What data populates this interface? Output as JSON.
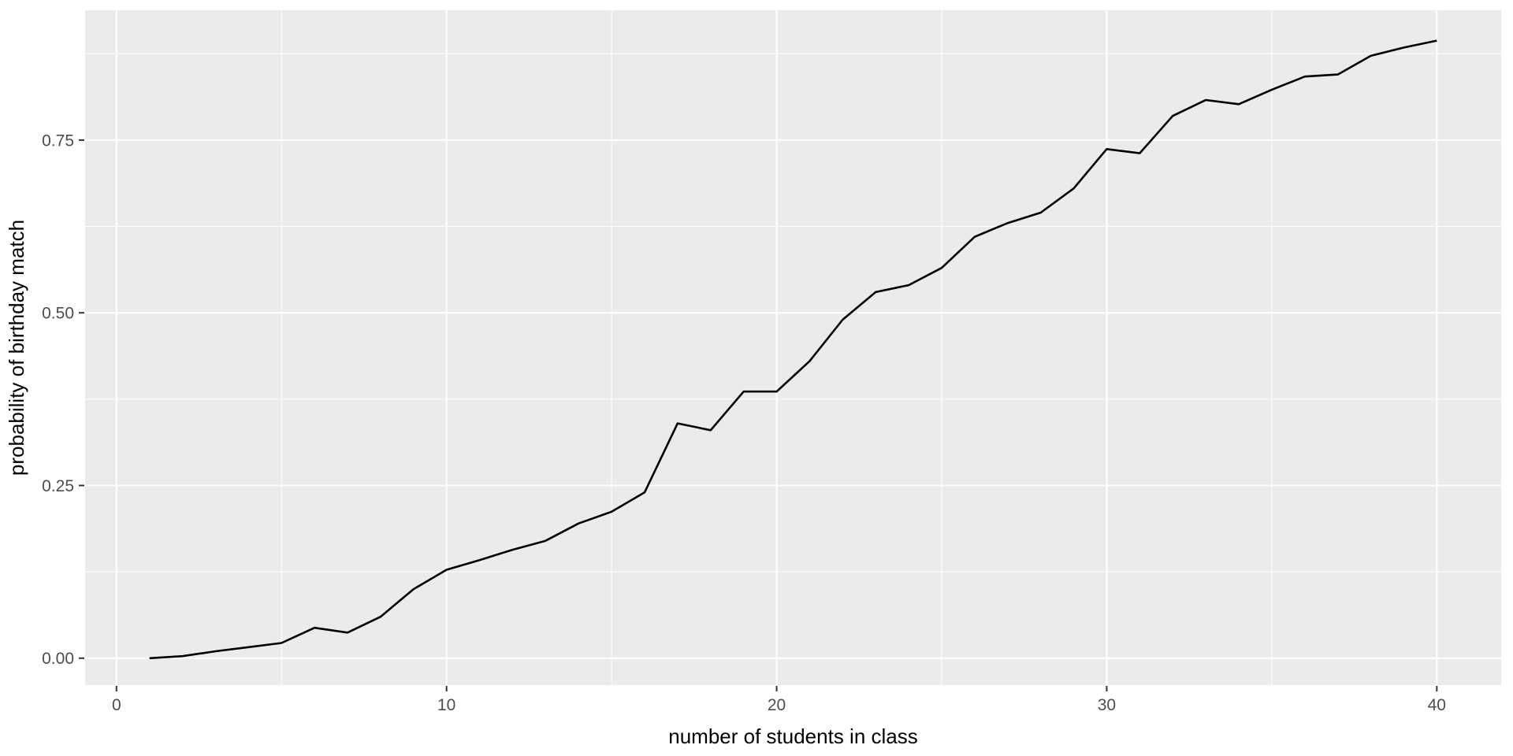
{
  "chart_data": {
    "type": "line",
    "title": "",
    "xlabel": "number of students in class",
    "ylabel": "probability of birthday match",
    "x": [
      1,
      2,
      3,
      4,
      5,
      6,
      7,
      8,
      9,
      10,
      11,
      12,
      13,
      14,
      15,
      16,
      17,
      18,
      19,
      20,
      21,
      22,
      23,
      24,
      25,
      26,
      27,
      28,
      29,
      30,
      31,
      32,
      33,
      34,
      35,
      36,
      37,
      38,
      39,
      40
    ],
    "y": [
      0.0,
      0.003,
      0.01,
      0.016,
      0.022,
      0.044,
      0.037,
      0.06,
      0.1,
      0.128,
      0.142,
      0.157,
      0.17,
      0.195,
      0.212,
      0.24,
      0.34,
      0.33,
      0.386,
      0.386,
      0.43,
      0.49,
      0.53,
      0.54,
      0.565,
      0.61,
      0.63,
      0.645,
      0.68,
      0.737,
      0.731,
      0.785,
      0.808,
      0.802,
      0.823,
      0.842,
      0.845,
      0.872,
      0.884,
      0.894
    ],
    "xlim": [
      -0.95,
      41.95
    ],
    "ylim": [
      -0.039,
      0.938
    ],
    "x_major_ticks": [
      0,
      10,
      20,
      30,
      40
    ],
    "x_major_labels": [
      "0",
      "10",
      "20",
      "30",
      "40"
    ],
    "x_minor_ticks": [
      5,
      15,
      25,
      35
    ],
    "y_major_ticks": [
      0,
      0.25,
      0.5,
      0.75
    ],
    "y_major_labels": [
      "0.00",
      "0.25",
      "0.50",
      "0.75"
    ],
    "y_minor_ticks": [
      0.125,
      0.375,
      0.625,
      0.875
    ],
    "grid": "on",
    "legend": "none",
    "style": {
      "page_bg": "#FFFFFF",
      "panel_bg": "#EBEBEB",
      "grid_color": "#FFFFFF",
      "line_color": "#000000",
      "tick_mark_color": "#333333",
      "tick_label_color": "#4D4D4D",
      "axis_title_color": "#000000"
    }
  }
}
